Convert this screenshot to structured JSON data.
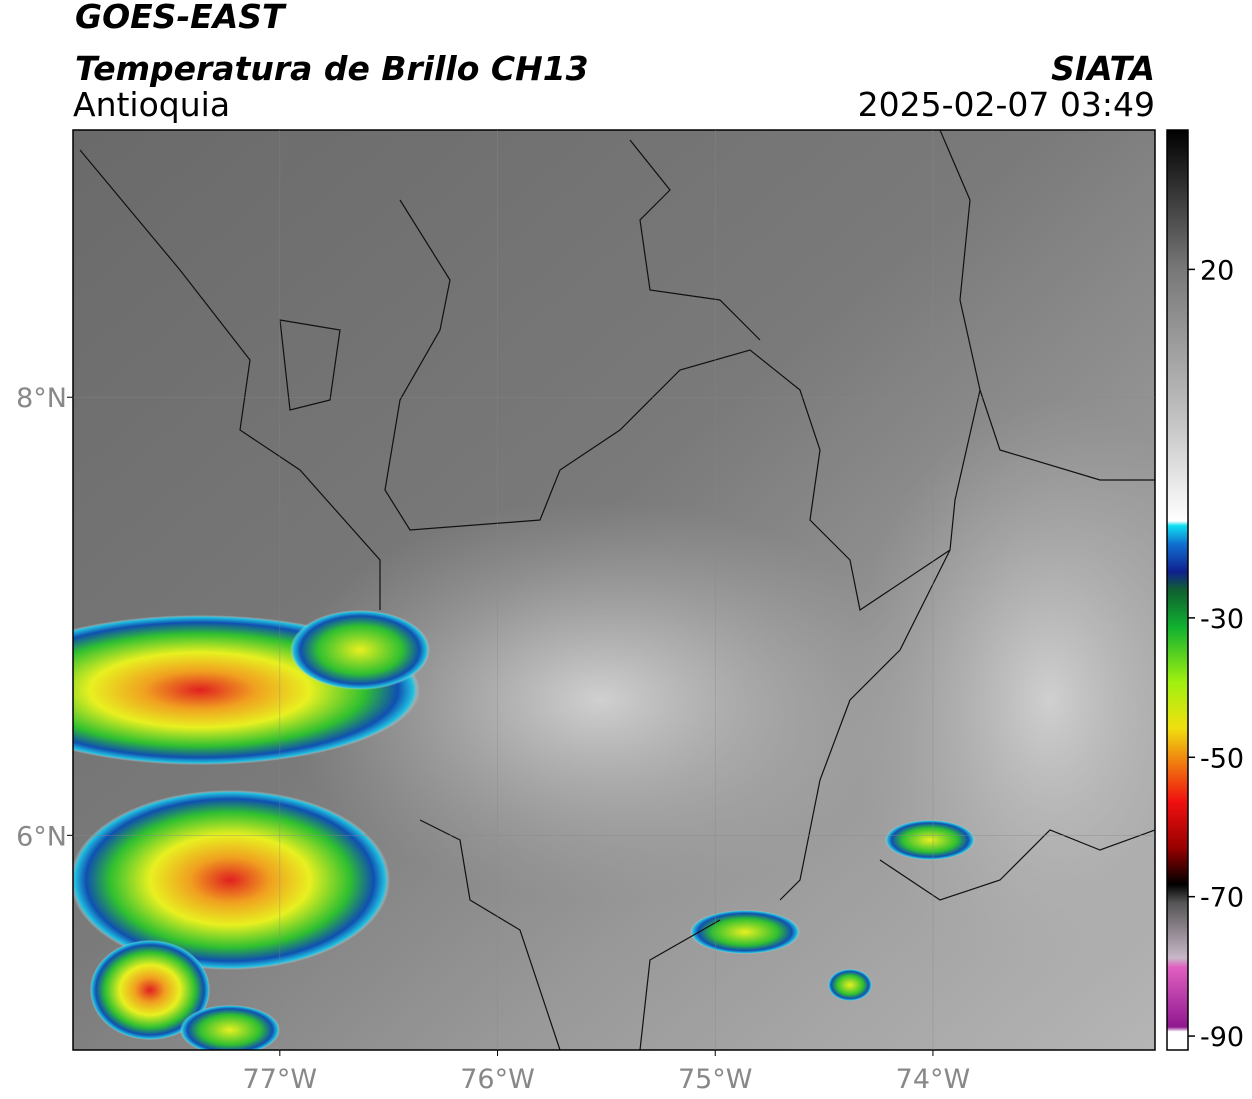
{
  "header": {
    "title": "GOES-EAST",
    "subtitle": "Temperatura de Brillo CH13",
    "region": "Antioquia",
    "source": "SIATA",
    "timestamp": "2025-02-07 03:49"
  },
  "map": {
    "xlim": [
      -77.95,
      -72.98
    ],
    "ylim": [
      5.02,
      9.22
    ],
    "xticks": [
      {
        "value": -77,
        "label": "77°W"
      },
      {
        "value": -76,
        "label": "76°W"
      },
      {
        "value": -75,
        "label": "75°W"
      },
      {
        "value": -74,
        "label": "74°W"
      }
    ],
    "yticks": [
      {
        "value": 8,
        "label": "8°N"
      },
      {
        "value": 6,
        "label": "6°N"
      }
    ],
    "grid": true
  },
  "colorbar": {
    "lim": [
      -92,
      40
    ],
    "ticks": [
      20,
      -30,
      -50,
      -70,
      -90
    ]
  }
}
